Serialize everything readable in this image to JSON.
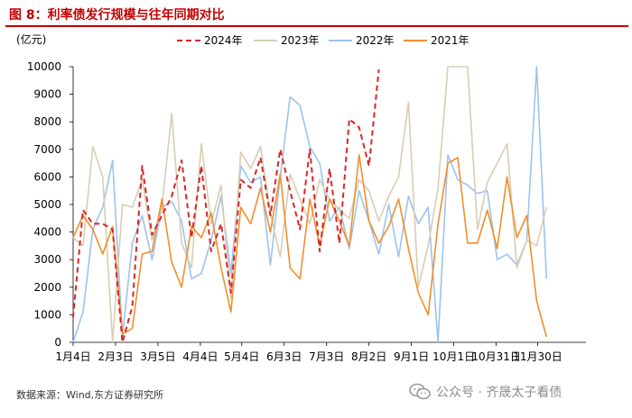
{
  "header": {
    "title": "图 8：利率债发行规模与往年同期对比"
  },
  "footer": {
    "source": "数据来源：Wind,东方证券研究所",
    "watermark": "公众号 · 齐晟太子看债"
  },
  "colors": {
    "title": "#c00000",
    "s2024": "#d62728",
    "s2023": "#d9cdb3",
    "s2022": "#9cc3f0",
    "s2021": "#f28e2b"
  },
  "chart_data": {
    "type": "line",
    "ylabel": "(亿元)",
    "ylim": [
      0,
      10000
    ],
    "yticks": [
      "0",
      "1000",
      "2000",
      "3000",
      "4000",
      "5000",
      "6000",
      "7000",
      "8000",
      "9000",
      "10000"
    ],
    "xlim": [
      0,
      52
    ],
    "xticks": [
      {
        "label": "1月4日",
        "pos": 0
      },
      {
        "label": "2月3日",
        "pos": 4.3
      },
      {
        "label": "3月5日",
        "pos": 8.6
      },
      {
        "label": "4月4日",
        "pos": 12.9
      },
      {
        "label": "5月4日",
        "pos": 17.1
      },
      {
        "label": "6月3日",
        "pos": 21.4
      },
      {
        "label": "7月3日",
        "pos": 25.7
      },
      {
        "label": "8月2日",
        "pos": 30
      },
      {
        "label": "9月1日",
        "pos": 34.3
      },
      {
        "label": "10月1日",
        "pos": 38.6
      },
      {
        "label": "10月31日",
        "pos": 42.9
      },
      {
        "label": "11月30日",
        "pos": 47.1
      }
    ],
    "grid": false,
    "legend_position": "top",
    "series": [
      {
        "name": "2024年",
        "color": "#d62728",
        "style": "dashed",
        "values": [
          900,
          4800,
          4300,
          4300,
          4100,
          0,
          1300,
          6400,
          3900,
          4600,
          5300,
          6600,
          3800,
          6400,
          3300,
          4300,
          1800,
          5900,
          5600,
          6700,
          4600,
          7000,
          5500,
          4100,
          7000,
          3300,
          6300,
          3600,
          8100,
          7800,
          6400,
          9900
        ]
      },
      {
        "name": "2023年",
        "color": "#d9cdb3",
        "style": "solid",
        "values": [
          3800,
          3500,
          7100,
          6000,
          0,
          5000,
          4900,
          5900,
          3700,
          4900,
          8300,
          3600,
          2700,
          7200,
          4300,
          5700,
          1600,
          6900,
          6300,
          7100,
          4700,
          3100,
          6100,
          5200,
          4300,
          5900,
          5200,
          4800,
          4500,
          5900,
          5500,
          4400,
          5300,
          6000,
          8700,
          2000,
          3500,
          5600,
          10000,
          10000,
          10000,
          4100,
          5800,
          6500,
          7200,
          2700,
          3700,
          3500,
          4900
        ]
      },
      {
        "name": "2022年",
        "color": "#9cc3f0",
        "style": "solid",
        "values": [
          0,
          1100,
          4100,
          4900,
          6600,
          200,
          3600,
          4600,
          3000,
          4900,
          5100,
          4400,
          2300,
          2500,
          3700,
          5300,
          2500,
          6400,
          5800,
          6000,
          2800,
          6000,
          8900,
          8600,
          7100,
          6500,
          4400,
          4900,
          3400,
          5500,
          4400,
          3200,
          5000,
          3100,
          5300,
          4300,
          4900,
          0,
          6800,
          5900,
          5700,
          5400,
          5500,
          3000,
          3200,
          2800,
          3700,
          10000,
          2300
        ]
      },
      {
        "name": "2021年",
        "color": "#f28e2b",
        "style": "solid",
        "values": [
          3800,
          4600,
          4100,
          3200,
          4200,
          300,
          500,
          3200,
          3300,
          5200,
          2900,
          2000,
          4200,
          3800,
          4700,
          2700,
          1100,
          4900,
          4300,
          5600,
          4000,
          6100,
          2700,
          2300,
          5200,
          3500,
          5200,
          4400,
          3500,
          6800,
          4400,
          3600,
          4200,
          5200,
          3400,
          1800,
          1000,
          4300,
          6500,
          6700,
          3600,
          3600,
          4800,
          3400,
          6000,
          3800,
          4600,
          1500,
          200
        ]
      }
    ]
  }
}
